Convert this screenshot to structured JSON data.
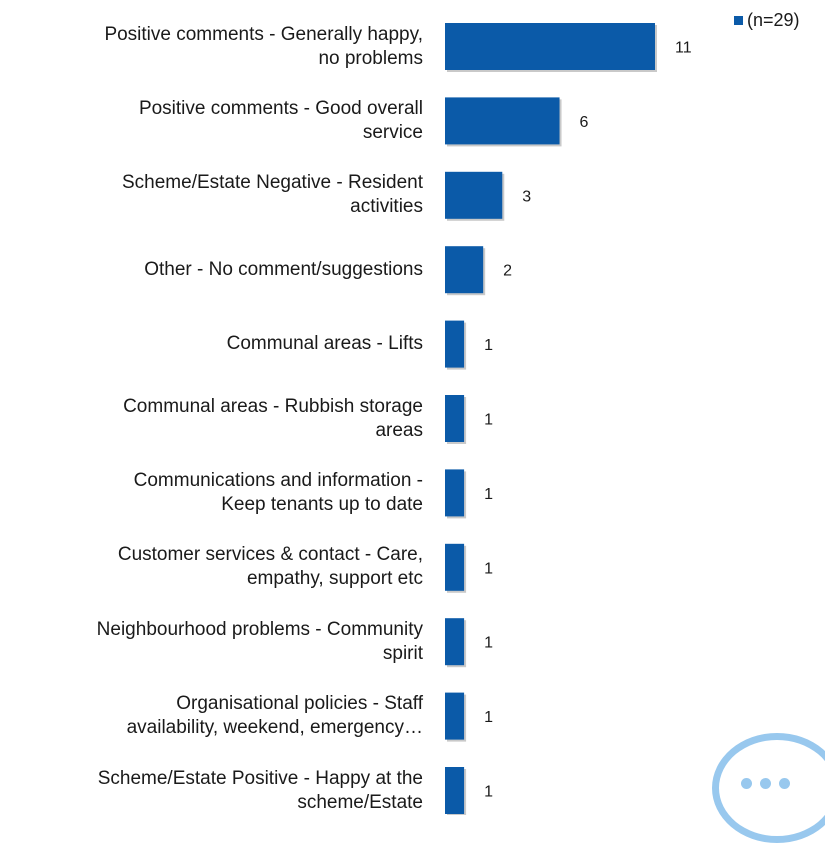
{
  "chart_data": {
    "type": "bar",
    "orientation": "horizontal",
    "categories": [
      "Positive comments - Generally happy, no problems",
      "Positive comments - Good overall service",
      "Scheme/Estate Negative - Resident activities",
      "Other - No comment/suggestions",
      "Communal areas - Lifts",
      "Communal areas - Rubbish storage areas",
      "Communications and information - Keep tenants up to date",
      "Customer services & contact - Care, empathy, support etc",
      "Neighbourhood problems - Community spirit",
      "Organisational policies - Staff availability, weekend, emergency…",
      "Scheme/Estate Positive - Happy at the scheme/Estate"
    ],
    "series": [
      {
        "name": "(n=29)",
        "values": [
          11,
          6,
          3,
          2,
          1,
          1,
          1,
          1,
          1,
          1,
          1
        ]
      }
    ],
    "xlim": [
      0,
      11
    ],
    "title": "",
    "xlabel": "",
    "ylabel": "",
    "grid": false,
    "legend_position": "top-right",
    "data_labels": true,
    "bar_color": "#0b5aa8"
  },
  "legend": {
    "label": "(n=29)"
  },
  "chat_button": {
    "icon": "chat-bubble-icon"
  }
}
